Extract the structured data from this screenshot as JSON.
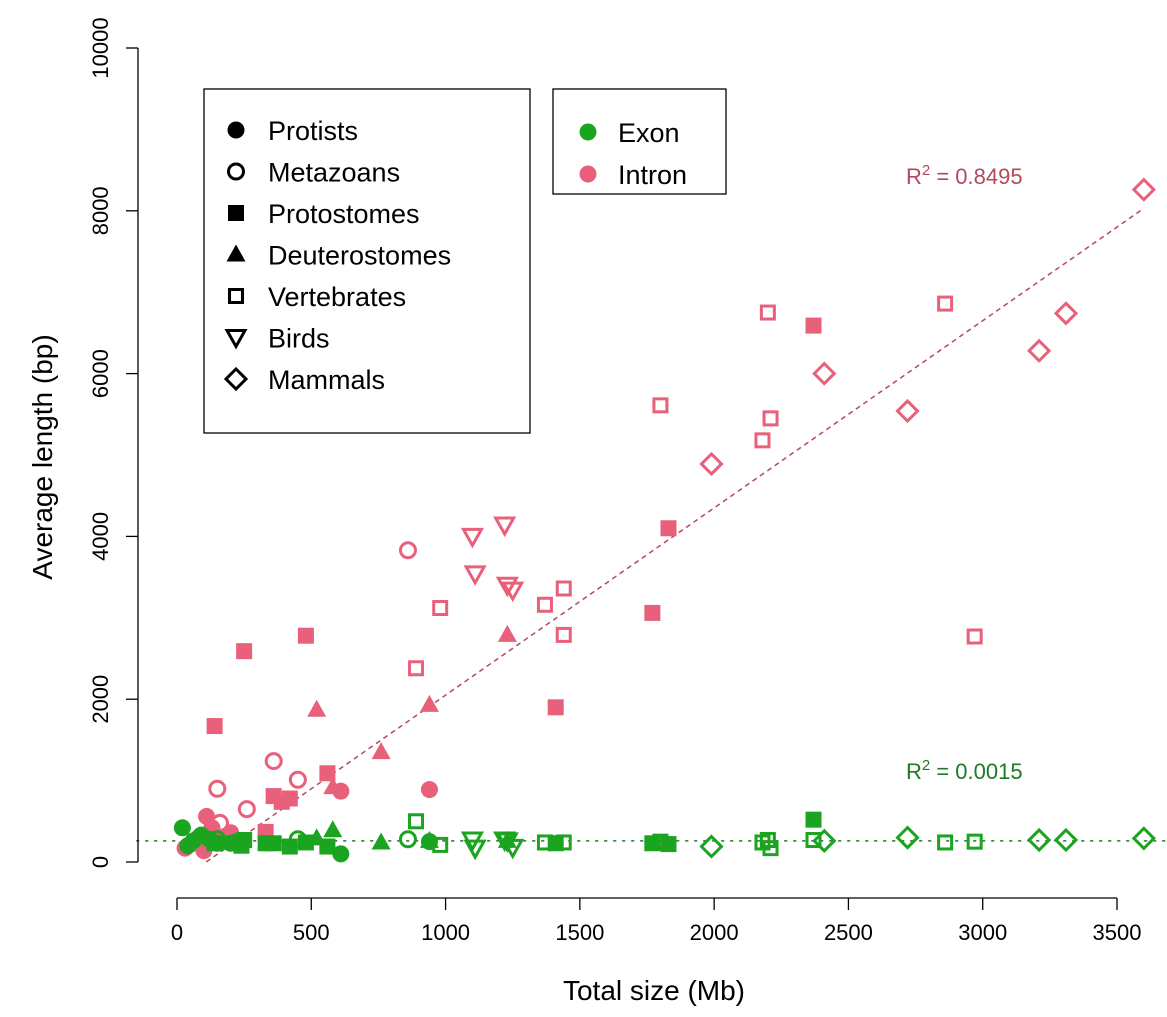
{
  "chart_data": {
    "type": "scatter",
    "xlabel": "Total size (Mb)",
    "ylabel": "Average length (bp)",
    "xlim": [
      0,
      3600
    ],
    "ylim": [
      0,
      10000
    ],
    "x_ticks": [
      0,
      500,
      1000,
      1500,
      2000,
      2500,
      3000,
      3500
    ],
    "y_ticks": [
      0,
      2000,
      4000,
      6000,
      8000,
      10000
    ],
    "x_tick_labels": [
      "0",
      "500",
      "1000",
      "1500",
      "2000",
      "2500",
      "3000",
      "3500"
    ],
    "y_tick_labels": [
      "0",
      "2000",
      "4000",
      "6000",
      "8000",
      "10000"
    ],
    "grid": false,
    "colors": {
      "exon": "#1aa41f",
      "intron": "#e8607a",
      "intron_fit": "#b24a5f",
      "exon_fit": "#1f7a24"
    },
    "legend_groups": {
      "title_items": [
        {
          "label": "Protists",
          "shape": "circle-filled"
        },
        {
          "label": "Metazoans",
          "shape": "circle-open"
        },
        {
          "label": "Protostomes",
          "shape": "square-filled"
        },
        {
          "label": "Deuterostomes",
          "shape": "triangle-filled"
        },
        {
          "label": "Vertebrates",
          "shape": "square-open"
        },
        {
          "label": "Birds",
          "shape": "triangle-down-open"
        },
        {
          "label": "Mammals",
          "shape": "diamond-open"
        }
      ],
      "color_items": [
        {
          "label": "Exon",
          "color": "#1aa41f"
        },
        {
          "label": "Intron",
          "color": "#e8607a"
        }
      ]
    },
    "fits": [
      {
        "name": "intron-fit",
        "intercept": -250,
        "slope": 2.3,
        "style": "dashed",
        "label_prefix": "R",
        "label_sup": "2",
        "label_value": " = 0.8495"
      },
      {
        "name": "exon-fit",
        "intercept": 260,
        "slope": 0,
        "style": "dotted",
        "label_prefix": "R",
        "label_sup": "2",
        "label_value": " = 0.0015"
      }
    ],
    "series": [
      {
        "group": "Protists",
        "feature": "Intron",
        "shape": "circle-filled",
        "points": [
          [
            30,
            170
          ],
          [
            60,
            230
          ],
          [
            80,
            300
          ],
          [
            100,
            140
          ],
          [
            110,
            560
          ],
          [
            130,
            420
          ],
          [
            150,
            300
          ],
          [
            170,
            260
          ],
          [
            200,
            360
          ],
          [
            230,
            250
          ],
          [
            610,
            870
          ],
          [
            940,
            890
          ]
        ]
      },
      {
        "group": "Metazoans",
        "feature": "Intron",
        "shape": "circle-open",
        "points": [
          [
            150,
            900
          ],
          [
            160,
            480
          ],
          [
            260,
            650
          ],
          [
            360,
            1240
          ],
          [
            450,
            1010
          ],
          [
            860,
            3830
          ]
        ]
      },
      {
        "group": "Protostomes",
        "feature": "Intron",
        "shape": "square-filled",
        "points": [
          [
            140,
            1670
          ],
          [
            250,
            2590
          ],
          [
            330,
            370
          ],
          [
            360,
            810
          ],
          [
            390,
            740
          ],
          [
            420,
            780
          ],
          [
            480,
            2780
          ],
          [
            560,
            1090
          ],
          [
            1410,
            1900
          ],
          [
            1770,
            3060
          ],
          [
            1830,
            4100
          ],
          [
            2370,
            6590
          ]
        ]
      },
      {
        "group": "Deuterostomes",
        "feature": "Intron",
        "shape": "triangle-filled",
        "points": [
          [
            520,
            1870
          ],
          [
            580,
            920
          ],
          [
            760,
            1350
          ],
          [
            940,
            1930
          ],
          [
            1230,
            2790
          ]
        ]
      },
      {
        "group": "Vertebrates",
        "feature": "Intron",
        "shape": "square-open",
        "points": [
          [
            890,
            2380
          ],
          [
            980,
            3120
          ],
          [
            1370,
            3160
          ],
          [
            1440,
            3360
          ],
          [
            1440,
            2790
          ],
          [
            1800,
            5610
          ],
          [
            2180,
            5180
          ],
          [
            2200,
            6750
          ],
          [
            2210,
            5450
          ],
          [
            2860,
            6860
          ],
          [
            2970,
            2770
          ]
        ]
      },
      {
        "group": "Birds",
        "feature": "Intron",
        "shape": "triangle-down-open",
        "points": [
          [
            1100,
            4000
          ],
          [
            1110,
            3540
          ],
          [
            1220,
            4140
          ],
          [
            1230,
            3400
          ],
          [
            1250,
            3340
          ]
        ]
      },
      {
        "group": "Mammals",
        "feature": "Intron",
        "shape": "diamond-open",
        "points": [
          [
            1990,
            4890
          ],
          [
            2410,
            6000
          ],
          [
            2720,
            5540
          ],
          [
            3210,
            6280
          ],
          [
            3310,
            6740
          ],
          [
            3600,
            8260
          ]
        ]
      },
      {
        "group": "Protists",
        "feature": "Exon",
        "shape": "circle-filled",
        "points": [
          [
            20,
            420
          ],
          [
            40,
            200
          ],
          [
            60,
            260
          ],
          [
            90,
            330
          ],
          [
            120,
            280
          ],
          [
            150,
            230
          ],
          [
            200,
            230
          ],
          [
            610,
            100
          ],
          [
            940,
            250
          ]
        ]
      },
      {
        "group": "Metazoans",
        "feature": "Exon",
        "shape": "circle-open",
        "points": [
          [
            150,
            280
          ],
          [
            220,
            240
          ],
          [
            450,
            280
          ],
          [
            860,
            280
          ]
        ]
      },
      {
        "group": "Protostomes",
        "feature": "Exon",
        "shape": "square-filled",
        "points": [
          [
            140,
            230
          ],
          [
            240,
            200
          ],
          [
            250,
            270
          ],
          [
            330,
            230
          ],
          [
            360,
            230
          ],
          [
            420,
            190
          ],
          [
            480,
            240
          ],
          [
            560,
            190
          ],
          [
            1410,
            230
          ],
          [
            1770,
            230
          ],
          [
            1830,
            220
          ],
          [
            2370,
            520
          ]
        ]
      },
      {
        "group": "Deuterostomes",
        "feature": "Exon",
        "shape": "triangle-filled",
        "points": [
          [
            520,
            290
          ],
          [
            580,
            390
          ],
          [
            760,
            240
          ],
          [
            940,
            260
          ],
          [
            1230,
            260
          ]
        ]
      },
      {
        "group": "Vertebrates",
        "feature": "Exon",
        "shape": "square-open",
        "points": [
          [
            890,
            500
          ],
          [
            980,
            210
          ],
          [
            1370,
            240
          ],
          [
            1440,
            240
          ],
          [
            1800,
            250
          ],
          [
            2180,
            240
          ],
          [
            2200,
            270
          ],
          [
            2210,
            170
          ],
          [
            2370,
            270
          ],
          [
            2860,
            240
          ],
          [
            2970,
            250
          ]
        ]
      },
      {
        "group": "Birds",
        "feature": "Exon",
        "shape": "triangle-down-open",
        "points": [
          [
            1100,
            270
          ],
          [
            1110,
            170
          ],
          [
            1220,
            270
          ],
          [
            1230,
            260
          ],
          [
            1250,
            180
          ]
        ]
      },
      {
        "group": "Mammals",
        "feature": "Exon",
        "shape": "diamond-open",
        "points": [
          [
            1990,
            190
          ],
          [
            2410,
            260
          ],
          [
            2720,
            300
          ],
          [
            3210,
            270
          ],
          [
            3310,
            270
          ],
          [
            3600,
            290
          ]
        ]
      }
    ]
  }
}
